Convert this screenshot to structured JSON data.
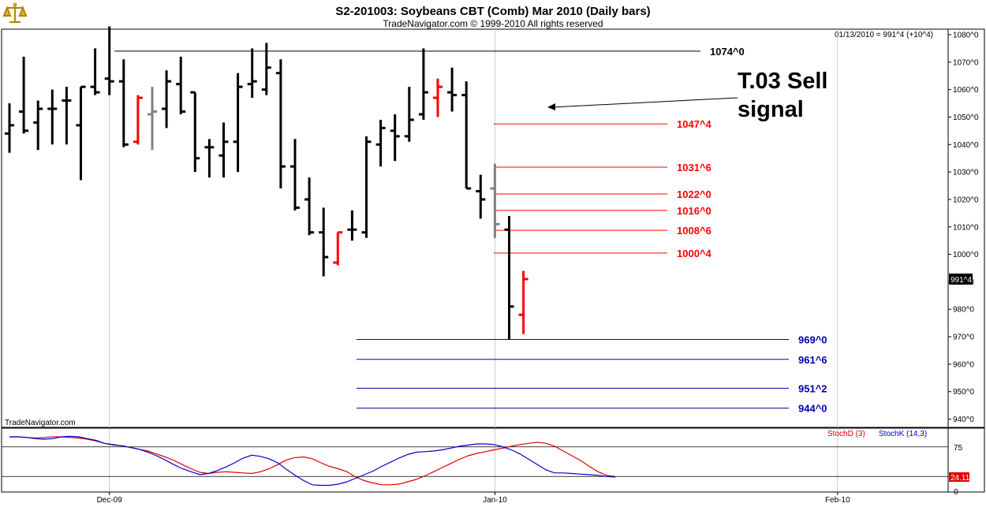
{
  "header": {
    "title": "S2-201003:  Soybeans CBT (Comb) Mar 2010  (Daily bars)",
    "copyright": "TradeNavigator.com © 1999-2010 All rights reserved",
    "quote": "01/13/2010 = 991^4 (+10^4)",
    "watermark": "TradeNavigator.com",
    "logo_icon": "scales-icon"
  },
  "chart_data": [
    {
      "type": "ohlc",
      "title": "S2-201003:  Soybeans CBT (Comb) Mar 2010  (Daily bars)",
      "price_scale": {
        "ylim": [
          937,
          1082
        ],
        "ticks": [
          940,
          950,
          960,
          970,
          980,
          990,
          1000,
          1010,
          1020,
          1030,
          1040,
          1050,
          1060,
          1070,
          1080
        ],
        "tick_labels": [
          "940^0",
          "950^0",
          "960^0",
          "970^0",
          "980^0",
          "990^0",
          "1000^0",
          "1010^0",
          "1020^0",
          "1030^0",
          "1040^0",
          "1050^0",
          "1060^0",
          "1070^0",
          "1080^0"
        ]
      },
      "last_price_label": "991^4",
      "x_labels": [
        {
          "label": "Dec-09",
          "index": 7
        },
        {
          "label": "Jan-10",
          "index": 34
        },
        {
          "label": "Feb-10",
          "index": 58
        }
      ],
      "bar_colors": {
        "normal": "#000000",
        "red": "#ff0000",
        "gray": "#808080",
        "green": "#00cc00"
      },
      "bars": [
        {
          "o": 1044,
          "h": 1055,
          "l": 1037,
          "c": 1047,
          "color": "normal"
        },
        {
          "o": 1052,
          "h": 1072,
          "l": 1044,
          "c": 1045,
          "color": "normal"
        },
        {
          "o": 1048,
          "h": 1056,
          "l": 1038,
          "c": 1053,
          "color": "normal"
        },
        {
          "o": 1053,
          "h": 1060,
          "l": 1040,
          "c": 1053,
          "color": "normal"
        },
        {
          "o": 1056,
          "h": 1061,
          "l": 1040,
          "c": 1056,
          "color": "normal"
        },
        {
          "o": 1047,
          "h": 1061,
          "l": 1027,
          "c": 1061,
          "color": "normal"
        },
        {
          "o": 1061,
          "h": 1075,
          "l": 1058,
          "c": 1059,
          "color": "normal"
        },
        {
          "o": 1064,
          "h": 1083,
          "l": 1058,
          "c": 1063,
          "color": "normal"
        },
        {
          "o": 1063,
          "h": 1071,
          "l": 1039,
          "c": 1040,
          "color": "normal"
        },
        {
          "o": 1041,
          "h": 1058,
          "l": 1040,
          "c": 1057,
          "color": "red"
        },
        {
          "o": 1051,
          "h": 1061,
          "l": 1038,
          "c": 1052,
          "color": "gray"
        },
        {
          "o": 1053,
          "h": 1067,
          "l": 1046,
          "c": 1063,
          "color": "normal"
        },
        {
          "o": 1062,
          "h": 1072,
          "l": 1051,
          "c": 1052,
          "color": "normal"
        },
        {
          "o": 1059,
          "h": 1059,
          "l": 1030,
          "c": 1035,
          "color": "normal"
        },
        {
          "o": 1039,
          "h": 1042,
          "l": 1028,
          "c": 1039,
          "color": "normal"
        },
        {
          "o": 1036,
          "h": 1048,
          "l": 1028,
          "c": 1041,
          "color": "normal"
        },
        {
          "o": 1041,
          "h": 1066,
          "l": 1030,
          "c": 1061,
          "color": "normal"
        },
        {
          "o": 1062,
          "h": 1075,
          "l": 1057,
          "c": 1063,
          "color": "normal"
        },
        {
          "o": 1060,
          "h": 1077,
          "l": 1058,
          "c": 1068,
          "color": "normal"
        },
        {
          "o": 1066,
          "h": 1071,
          "l": 1024,
          "c": 1032,
          "color": "normal"
        },
        {
          "o": 1032,
          "h": 1042,
          "l": 1016,
          "c": 1017,
          "color": "normal"
        },
        {
          "o": 1020,
          "h": 1028,
          "l": 1007,
          "c": 1008,
          "color": "normal"
        },
        {
          "o": 1008,
          "h": 1017,
          "l": 992,
          "c": 999,
          "color": "normal"
        },
        {
          "o": 997,
          "h": 1008,
          "l": 996,
          "c": 1008,
          "color": "red"
        },
        {
          "o": 1009,
          "h": 1016,
          "l": 1005,
          "c": 1009,
          "color": "normal"
        },
        {
          "o": 1008,
          "h": 1043,
          "l": 1006,
          "c": 1041,
          "color": "normal"
        },
        {
          "o": 1040,
          "h": 1049,
          "l": 1032,
          "c": 1046,
          "color": "normal"
        },
        {
          "o": 1045,
          "h": 1051,
          "l": 1034,
          "c": 1043,
          "color": "normal"
        },
        {
          "o": 1043,
          "h": 1061,
          "l": 1041,
          "c": 1049,
          "color": "normal"
        },
        {
          "o": 1051,
          "h": 1075,
          "l": 1049,
          "c": 1059,
          "color": "normal"
        },
        {
          "o": 1057,
          "h": 1064,
          "l": 1050,
          "c": 1061,
          "color": "red"
        },
        {
          "o": 1059,
          "h": 1068,
          "l": 1052,
          "c": 1058,
          "color": "normal"
        },
        {
          "o": 1058,
          "h": 1063,
          "l": 1024,
          "c": 1024,
          "color": "normal"
        },
        {
          "o": 1023,
          "h": 1029,
          "l": 1013,
          "c": 1020,
          "color": "normal"
        },
        {
          "o": 1024,
          "h": 1033,
          "l": 1006,
          "c": 1011,
          "color": "gray"
        },
        {
          "o": 1009,
          "h": 1014,
          "l": 969,
          "c": 981,
          "color": "normal"
        },
        {
          "o": 978,
          "h": 994,
          "l": 971,
          "c": 991,
          "color": "red"
        }
      ],
      "horizontal_levels": [
        {
          "label": "1074^0",
          "value": 1074,
          "color": "#000000"
        },
        {
          "label": "1047^4",
          "value": 1047.5,
          "color": "#ff0000"
        },
        {
          "label": "1031^6",
          "value": 1031.75,
          "color": "#ff0000"
        },
        {
          "label": "1022^0",
          "value": 1022,
          "color": "#ff0000"
        },
        {
          "label": "1016^0",
          "value": 1016,
          "color": "#ff0000"
        },
        {
          "label": "1008^6",
          "value": 1008.75,
          "color": "#ff0000"
        },
        {
          "label": "1000^4",
          "value": 1000.5,
          "color": "#ff0000"
        },
        {
          "label": "969^0",
          "value": 969,
          "color": "#0000aa"
        },
        {
          "label": "961^6",
          "value": 961.75,
          "color": "#0000aa"
        },
        {
          "label": "951^2",
          "value": 951.25,
          "color": "#0000aa"
        },
        {
          "label": "944^0",
          "value": 944,
          "color": "#0000aa"
        }
      ],
      "annotation": {
        "line1": "T.03 Sell",
        "line2": "signal"
      }
    },
    {
      "type": "line",
      "legend": [
        {
          "name": "StochD (3)",
          "color": "#dd0000"
        },
        {
          "name": "StochK (14,3)",
          "color": "#0000cc"
        }
      ],
      "ylim": [
        0,
        100
      ],
      "ticks": [
        0,
        25,
        75
      ],
      "last_value_label": "24.11",
      "series": [
        {
          "name": "StochD (3)",
          "color": "#dd0000",
          "values": [
            92,
            92,
            91,
            90,
            91,
            92,
            92,
            91,
            90,
            88,
            85,
            81,
            78,
            77,
            74,
            71,
            68,
            63,
            58,
            52,
            45,
            38,
            32,
            30,
            32,
            33,
            32,
            31,
            30,
            33,
            38,
            45,
            53,
            57,
            58,
            55,
            48,
            42,
            38,
            33,
            24,
            18,
            14,
            11,
            11,
            12,
            16,
            20,
            26,
            33,
            40,
            47,
            54,
            60,
            64,
            67,
            70,
            73,
            76,
            79,
            81,
            83,
            81,
            76,
            68,
            60,
            52,
            42,
            33,
            27,
            25
          ]
        },
        {
          "name": "StochK (14,3)",
          "color": "#0000cc",
          "values": [
            92,
            92,
            91,
            89,
            88,
            89,
            92,
            93,
            92,
            89,
            86,
            81,
            79,
            77,
            74,
            71,
            66,
            60,
            53,
            45,
            38,
            33,
            28,
            30,
            35,
            41,
            48,
            56,
            61,
            59,
            55,
            48,
            37,
            27,
            18,
            11,
            10,
            10,
            12,
            16,
            22,
            28,
            34,
            42,
            49,
            56,
            62,
            66,
            67,
            68,
            70,
            73,
            76,
            78,
            80,
            80,
            79,
            75,
            70,
            63,
            54,
            45,
            36,
            31,
            31,
            30,
            29,
            28,
            27,
            25,
            24
          ]
        }
      ]
    }
  ]
}
